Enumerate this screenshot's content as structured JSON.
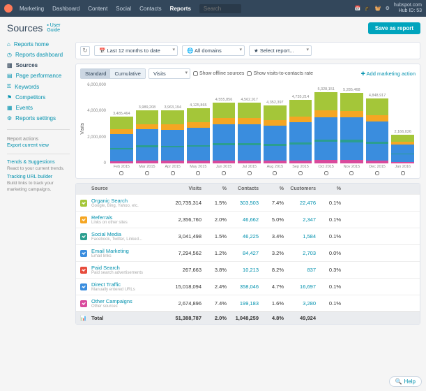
{
  "topbar": {
    "brand": "Marketing",
    "nav": [
      "Dashboard",
      "Content",
      "Social",
      "Contacts",
      "Reports"
    ],
    "active_index": 4,
    "search_placeholder": "Search",
    "account_label": "hubspot.com",
    "hub_id_label": "Hub ID: 53"
  },
  "page": {
    "title": "Sources",
    "user_guide": "User Guide",
    "save_button": "Save as report"
  },
  "sidebar": {
    "items": [
      {
        "icon": "home",
        "label": "Reports home"
      },
      {
        "icon": "gauge",
        "label": "Reports dashboard"
      },
      {
        "icon": "bars",
        "label": "Sources"
      },
      {
        "icon": "page",
        "label": "Page performance"
      },
      {
        "icon": "key",
        "label": "Keywords"
      },
      {
        "icon": "flag",
        "label": "Competitors"
      },
      {
        "icon": "cal",
        "label": "Events"
      },
      {
        "icon": "gear",
        "label": "Reports settings"
      }
    ],
    "active_index": 2,
    "actions_header": "Report actions",
    "export_link": "Export current view",
    "trends_header": "Trends & Suggestions",
    "trends_sub": "React to your current trends.",
    "tracking_header": "Tracking URL builder",
    "tracking_sub": "Build links to track your marketing campaigns."
  },
  "filters": {
    "date_range": "Last 12 months to date",
    "domains": "All domains",
    "report": "Select report..."
  },
  "chart_toolbar": {
    "standard": "Standard",
    "cumulative": "Cumulative",
    "metric": "Visits",
    "offline": "Show offline sources",
    "v2c": "Show visits-to-contacts rate",
    "add_action": "Add marketing action"
  },
  "chart": {
    "y_label": "Visits",
    "y_max": 6000000,
    "y_ticks": [
      "6,000,000",
      "4,000,000",
      "2,000,000",
      "0"
    ],
    "colors": {
      "organic": "#a4c639",
      "referrals": "#f5a623",
      "social": "#2b9e8f",
      "email": "#3a8dde",
      "paid": "#e74c3c",
      "direct": "#3a8dde",
      "other": "#d94a9c",
      "grid": "#eeeeee",
      "bg": "#ffffff"
    },
    "months": [
      {
        "label": "Feb 2015",
        "total": "3,485,464",
        "segments": [
          170000,
          850000,
          140000,
          1050000,
          350000,
          925464
        ]
      },
      {
        "label": "Mar 2015",
        "total": "3,989,208",
        "segments": [
          195000,
          1020000,
          150000,
          1200000,
          380000,
          1044208
        ]
      },
      {
        "label": "Apr 2015",
        "total": "3,963,194",
        "segments": [
          190000,
          990000,
          145000,
          1190000,
          400000,
          1048194
        ]
      },
      {
        "label": "May 2015",
        "total": "4,125,865",
        "segments": [
          200000,
          1030000,
          150000,
          1260000,
          420000,
          1065865
        ]
      },
      {
        "label": "Jun 2015",
        "total": "4,555,856",
        "segments": [
          215000,
          1150000,
          160000,
          1400000,
          450000,
          1180856
        ]
      },
      {
        "label": "Jul 2015",
        "total": "4,562,917",
        "segments": [
          215000,
          1140000,
          165000,
          1420000,
          440000,
          1182917
        ]
      },
      {
        "label": "Aug 2015",
        "total": "4,352,397",
        "segments": [
          205000,
          1100000,
          155000,
          1340000,
          420000,
          1132397
        ]
      },
      {
        "label": "Sep 2015",
        "total": "4,735,214",
        "segments": [
          220000,
          1200000,
          170000,
          1470000,
          460000,
          1215214
        ]
      },
      {
        "label": "Oct 2015",
        "total": "5,328,151",
        "segments": [
          250000,
          1360000,
          190000,
          1660000,
          500000,
          1368151
        ]
      },
      {
        "label": "Nov 2015",
        "total": "5,285,468",
        "segments": [
          245000,
          1340000,
          185000,
          1650000,
          500000,
          1365468
        ]
      },
      {
        "label": "Dec 2015",
        "total": "4,848,917",
        "segments": [
          225000,
          1230000,
          175000,
          1510000,
          460000,
          1248917
        ]
      },
      {
        "label": "Jan 2016",
        "total": "2,166,026",
        "segments": [
          105000,
          550000,
          80000,
          670000,
          210000,
          551026
        ]
      }
    ]
  },
  "table": {
    "headers": [
      "Source",
      "Visits",
      "%",
      "Contacts",
      "%",
      "Customers",
      "%"
    ],
    "rows": [
      {
        "icon_color": "#a4c639",
        "name": "Organic Search",
        "sub": "Google, Bing, Yahoo, etc.",
        "visits": "20,735,314",
        "vpct": "1.5%",
        "contacts": "303,503",
        "cpct": "7.4%",
        "customers": "22,476",
        "cupct": "0.1%"
      },
      {
        "icon_color": "#f5a623",
        "name": "Referrals",
        "sub": "Links on other sites",
        "visits": "2,356,760",
        "vpct": "2.0%",
        "contacts": "46,662",
        "cpct": "5.0%",
        "customers": "2,347",
        "cupct": "0.1%"
      },
      {
        "icon_color": "#2b9e8f",
        "name": "Social Media",
        "sub": "Facebook, Twitter, Linked...",
        "visits": "3,041,498",
        "vpct": "1.5%",
        "contacts": "46,225",
        "cpct": "3.4%",
        "customers": "1,584",
        "cupct": "0.1%"
      },
      {
        "icon_color": "#3a8dde",
        "name": "Email Marketing",
        "sub": "Email links",
        "visits": "7,294,562",
        "vpct": "1.2%",
        "contacts": "84,427",
        "cpct": "3.2%",
        "customers": "2,703",
        "cupct": "0.0%"
      },
      {
        "icon_color": "#e74c3c",
        "name": "Paid Search",
        "sub": "Paid search advertisements",
        "visits": "267,663",
        "vpct": "3.8%",
        "contacts": "10,213",
        "cpct": "8.2%",
        "customers": "837",
        "cupct": "0.3%"
      },
      {
        "icon_color": "#3a8dde",
        "name": "Direct Traffic",
        "sub": "Manually entered URLs",
        "visits": "15,018,094",
        "vpct": "2.4%",
        "contacts": "358,046",
        "cpct": "4.7%",
        "customers": "16,697",
        "cupct": "0.1%"
      },
      {
        "icon_color": "#d94a9c",
        "name": "Other Campaigns",
        "sub": "Other sources",
        "visits": "2,674,896",
        "vpct": "7.4%",
        "contacts": "199,183",
        "cpct": "1.6%",
        "customers": "3,280",
        "cupct": "0.1%"
      }
    ],
    "total": {
      "label": "Total",
      "visits": "51,388,787",
      "vpct": "2.0%",
      "contacts": "1,048,259",
      "cpct": "4.8%",
      "customers": "49,924",
      "cupct": ""
    }
  },
  "help_label": "Help"
}
